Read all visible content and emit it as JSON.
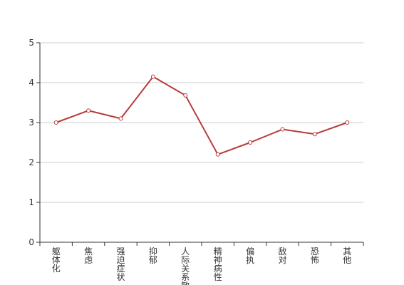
{
  "chart_data": {
    "type": "line",
    "categories": [
      "躯体化",
      "焦虑",
      "强迫症状",
      "抑郁",
      "人际关系敏感",
      "精神病性",
      "偏执",
      "敌对",
      "恐怖",
      "其他"
    ],
    "series": [
      {
        "values": [
          3.0,
          3.3,
          3.1,
          4.15,
          3.68,
          2.2,
          2.5,
          2.83,
          2.71,
          3.0
        ]
      }
    ],
    "yticks": [
      "0",
      "1",
      "2",
      "3",
      "4",
      "5"
    ],
    "ylim": [
      0,
      5
    ],
    "grid": true,
    "colors": {
      "line": "#b93a3a",
      "grid": "#cccccc",
      "axis": "#333333"
    }
  }
}
